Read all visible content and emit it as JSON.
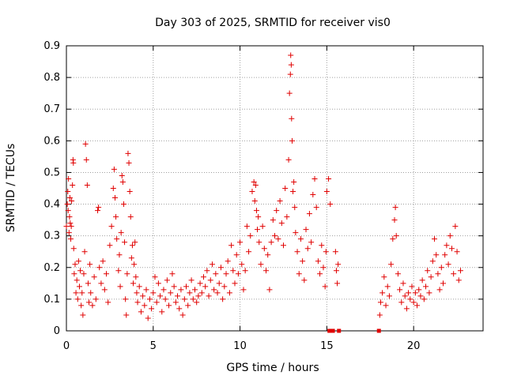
{
  "chart_data": {
    "type": "scatter",
    "title": "Day 303 of 2025, SRMTID for receiver vis0",
    "xlabel": "GPS time / hours",
    "ylabel": "SRMTID / TECUs",
    "xlim": [
      0,
      24
    ],
    "ylim": [
      0,
      0.9
    ],
    "xticks": [
      0,
      5,
      10,
      15,
      20
    ],
    "yticks": [
      0,
      0.1,
      0.2,
      0.3,
      0.4,
      0.5,
      0.6,
      0.7,
      0.8,
      0.9
    ],
    "grid": true,
    "marker": "+",
    "color": "#e00000",
    "series": [
      {
        "name": "vis0",
        "points": [
          [
            0.0,
            0.33
          ],
          [
            0.05,
            0.4
          ],
          [
            0.08,
            0.44
          ],
          [
            0.1,
            0.38
          ],
          [
            0.12,
            0.48
          ],
          [
            0.15,
            0.31
          ],
          [
            0.18,
            0.36
          ],
          [
            0.2,
            0.42
          ],
          [
            0.22,
            0.34
          ],
          [
            0.25,
            0.29
          ],
          [
            0.28,
            0.33
          ],
          [
            0.3,
            0.41
          ],
          [
            0.35,
            0.46
          ],
          [
            0.38,
            0.54
          ],
          [
            0.4,
            0.53
          ],
          [
            0.42,
            0.26
          ],
          [
            0.45,
            0.18
          ],
          [
            0.5,
            0.21
          ],
          [
            0.55,
            0.12
          ],
          [
            0.6,
            0.16
          ],
          [
            0.65,
            0.1
          ],
          [
            0.7,
            0.22
          ],
          [
            0.75,
            0.14
          ],
          [
            0.8,
            0.19
          ],
          [
            0.85,
            0.08
          ],
          [
            0.9,
            0.12
          ],
          [
            0.95,
            0.05
          ],
          [
            1.0,
            0.18
          ],
          [
            1.05,
            0.25
          ],
          [
            1.1,
            0.59
          ],
          [
            1.15,
            0.54
          ],
          [
            1.2,
            0.46
          ],
          [
            1.25,
            0.15
          ],
          [
            1.3,
            0.09
          ],
          [
            1.35,
            0.21
          ],
          [
            1.4,
            0.12
          ],
          [
            1.5,
            0.08
          ],
          [
            1.6,
            0.17
          ],
          [
            1.7,
            0.1
          ],
          [
            1.8,
            0.38
          ],
          [
            1.85,
            0.39
          ],
          [
            1.9,
            0.2
          ],
          [
            2.0,
            0.15
          ],
          [
            2.1,
            0.22
          ],
          [
            2.2,
            0.13
          ],
          [
            2.3,
            0.18
          ],
          [
            2.4,
            0.09
          ],
          [
            2.5,
            0.27
          ],
          [
            2.6,
            0.33
          ],
          [
            2.7,
            0.45
          ],
          [
            2.75,
            0.51
          ],
          [
            2.8,
            0.42
          ],
          [
            2.85,
            0.36
          ],
          [
            2.9,
            0.29
          ],
          [
            3.0,
            0.19
          ],
          [
            3.05,
            0.24
          ],
          [
            3.1,
            0.14
          ],
          [
            3.15,
            0.31
          ],
          [
            3.2,
            0.49
          ],
          [
            3.25,
            0.47
          ],
          [
            3.3,
            0.4
          ],
          [
            3.35,
            0.28
          ],
          [
            3.4,
            0.1
          ],
          [
            3.45,
            0.05
          ],
          [
            3.5,
            0.18
          ],
          [
            3.55,
            0.56
          ],
          [
            3.6,
            0.53
          ],
          [
            3.65,
            0.44
          ],
          [
            3.7,
            0.36
          ],
          [
            3.75,
            0.23
          ],
          [
            3.8,
            0.27
          ],
          [
            3.85,
            0.15
          ],
          [
            3.9,
            0.21
          ],
          [
            3.95,
            0.28
          ],
          [
            4.0,
            0.17
          ],
          [
            4.05,
            0.12
          ],
          [
            4.1,
            0.09
          ],
          [
            4.2,
            0.14
          ],
          [
            4.3,
            0.06
          ],
          [
            4.4,
            0.11
          ],
          [
            4.5,
            0.08
          ],
          [
            4.6,
            0.13
          ],
          [
            4.7,
            0.04
          ],
          [
            4.8,
            0.1
          ],
          [
            4.9,
            0.07
          ],
          [
            5.0,
            0.12
          ],
          [
            5.1,
            0.17
          ],
          [
            5.2,
            0.09
          ],
          [
            5.3,
            0.15
          ],
          [
            5.4,
            0.11
          ],
          [
            5.5,
            0.06
          ],
          [
            5.6,
            0.13
          ],
          [
            5.7,
            0.1
          ],
          [
            5.8,
            0.16
          ],
          [
            5.9,
            0.08
          ],
          [
            6.0,
            0.12
          ],
          [
            6.1,
            0.18
          ],
          [
            6.2,
            0.14
          ],
          [
            6.3,
            0.09
          ],
          [
            6.4,
            0.11
          ],
          [
            6.5,
            0.07
          ],
          [
            6.6,
            0.13
          ],
          [
            6.7,
            0.05
          ],
          [
            6.8,
            0.1
          ],
          [
            6.9,
            0.14
          ],
          [
            7.0,
            0.08
          ],
          [
            7.1,
            0.12
          ],
          [
            7.2,
            0.16
          ],
          [
            7.3,
            0.1
          ],
          [
            7.4,
            0.13
          ],
          [
            7.5,
            0.09
          ],
          [
            7.6,
            0.11
          ],
          [
            7.7,
            0.15
          ],
          [
            7.8,
            0.12
          ],
          [
            7.9,
            0.17
          ],
          [
            8.0,
            0.14
          ],
          [
            8.1,
            0.19
          ],
          [
            8.2,
            0.11
          ],
          [
            8.3,
            0.16
          ],
          [
            8.4,
            0.21
          ],
          [
            8.5,
            0.13
          ],
          [
            8.6,
            0.18
          ],
          [
            8.7,
            0.12
          ],
          [
            8.8,
            0.15
          ],
          [
            8.9,
            0.2
          ],
          [
            9.0,
            0.1
          ],
          [
            9.1,
            0.14
          ],
          [
            9.2,
            0.18
          ],
          [
            9.3,
            0.22
          ],
          [
            9.4,
            0.12
          ],
          [
            9.5,
            0.27
          ],
          [
            9.6,
            0.19
          ],
          [
            9.7,
            0.15
          ],
          [
            9.8,
            0.24
          ],
          [
            9.9,
            0.18
          ],
          [
            10.0,
            0.28
          ],
          [
            10.1,
            0.21
          ],
          [
            10.2,
            0.13
          ],
          [
            10.3,
            0.19
          ],
          [
            10.4,
            0.33
          ],
          [
            10.5,
            0.25
          ],
          [
            10.6,
            0.3
          ],
          [
            10.7,
            0.44
          ],
          [
            10.8,
            0.47
          ],
          [
            10.85,
            0.41
          ],
          [
            10.9,
            0.46
          ],
          [
            10.95,
            0.38
          ],
          [
            11.0,
            0.32
          ],
          [
            11.05,
            0.36
          ],
          [
            11.1,
            0.28
          ],
          [
            11.2,
            0.21
          ],
          [
            11.3,
            0.33
          ],
          [
            11.4,
            0.26
          ],
          [
            11.5,
            0.19
          ],
          [
            11.6,
            0.24
          ],
          [
            11.7,
            0.13
          ],
          [
            11.8,
            0.28
          ],
          [
            11.9,
            0.35
          ],
          [
            12.0,
            0.3
          ],
          [
            12.1,
            0.38
          ],
          [
            12.2,
            0.29
          ],
          [
            12.3,
            0.41
          ],
          [
            12.4,
            0.34
          ],
          [
            12.5,
            0.27
          ],
          [
            12.6,
            0.45
          ],
          [
            12.7,
            0.36
          ],
          [
            12.8,
            0.54
          ],
          [
            12.85,
            0.75
          ],
          [
            12.9,
            0.81
          ],
          [
            12.92,
            0.87
          ],
          [
            12.95,
            0.84
          ],
          [
            12.97,
            0.67
          ],
          [
            13.0,
            0.6
          ],
          [
            13.05,
            0.44
          ],
          [
            13.1,
            0.47
          ],
          [
            13.15,
            0.39
          ],
          [
            13.2,
            0.31
          ],
          [
            13.3,
            0.25
          ],
          [
            13.4,
            0.18
          ],
          [
            13.5,
            0.29
          ],
          [
            13.6,
            0.22
          ],
          [
            13.7,
            0.16
          ],
          [
            13.8,
            0.32
          ],
          [
            13.9,
            0.26
          ],
          [
            14.0,
            0.37
          ],
          [
            14.1,
            0.28
          ],
          [
            14.2,
            0.43
          ],
          [
            14.3,
            0.48
          ],
          [
            14.4,
            0.39
          ],
          [
            14.5,
            0.22
          ],
          [
            14.6,
            0.18
          ],
          [
            14.7,
            0.27
          ],
          [
            14.8,
            0.2
          ],
          [
            14.9,
            0.14
          ],
          [
            14.95,
            0.25
          ],
          [
            15.0,
            0.44
          ],
          [
            15.1,
            0.48
          ],
          [
            15.2,
            0.4
          ],
          [
            15.15,
            0.0
          ],
          [
            15.25,
            0.0
          ],
          [
            15.35,
            0.0
          ],
          [
            15.5,
            0.25
          ],
          [
            15.55,
            0.19
          ],
          [
            15.6,
            0.15
          ],
          [
            15.65,
            0.21
          ],
          [
            15.7,
            0.0
          ],
          [
            18.0,
            0.0
          ],
          [
            18.05,
            0.05
          ],
          [
            18.1,
            0.09
          ],
          [
            18.2,
            0.12
          ],
          [
            18.3,
            0.17
          ],
          [
            18.4,
            0.08
          ],
          [
            18.5,
            0.14
          ],
          [
            18.6,
            0.11
          ],
          [
            18.7,
            0.21
          ],
          [
            18.8,
            0.29
          ],
          [
            18.9,
            0.35
          ],
          [
            18.95,
            0.39
          ],
          [
            19.0,
            0.3
          ],
          [
            19.1,
            0.18
          ],
          [
            19.2,
            0.13
          ],
          [
            19.3,
            0.09
          ],
          [
            19.4,
            0.15
          ],
          [
            19.5,
            0.11
          ],
          [
            19.6,
            0.07
          ],
          [
            19.7,
            0.12
          ],
          [
            19.8,
            0.1
          ],
          [
            19.9,
            0.14
          ],
          [
            20.0,
            0.09
          ],
          [
            20.1,
            0.12
          ],
          [
            20.2,
            0.08
          ],
          [
            20.3,
            0.13
          ],
          [
            20.4,
            0.11
          ],
          [
            20.5,
            0.16
          ],
          [
            20.6,
            0.1
          ],
          [
            20.7,
            0.14
          ],
          [
            20.8,
            0.19
          ],
          [
            20.9,
            0.12
          ],
          [
            21.0,
            0.17
          ],
          [
            21.1,
            0.22
          ],
          [
            21.2,
            0.29
          ],
          [
            21.3,
            0.24
          ],
          [
            21.4,
            0.18
          ],
          [
            21.5,
            0.13
          ],
          [
            21.6,
            0.2
          ],
          [
            21.7,
            0.15
          ],
          [
            21.8,
            0.24
          ],
          [
            21.9,
            0.27
          ],
          [
            22.0,
            0.21
          ],
          [
            22.1,
            0.3
          ],
          [
            22.2,
            0.26
          ],
          [
            22.3,
            0.18
          ],
          [
            22.4,
            0.33
          ],
          [
            22.5,
            0.25
          ],
          [
            22.6,
            0.16
          ],
          [
            22.7,
            0.19
          ]
        ]
      }
    ]
  }
}
